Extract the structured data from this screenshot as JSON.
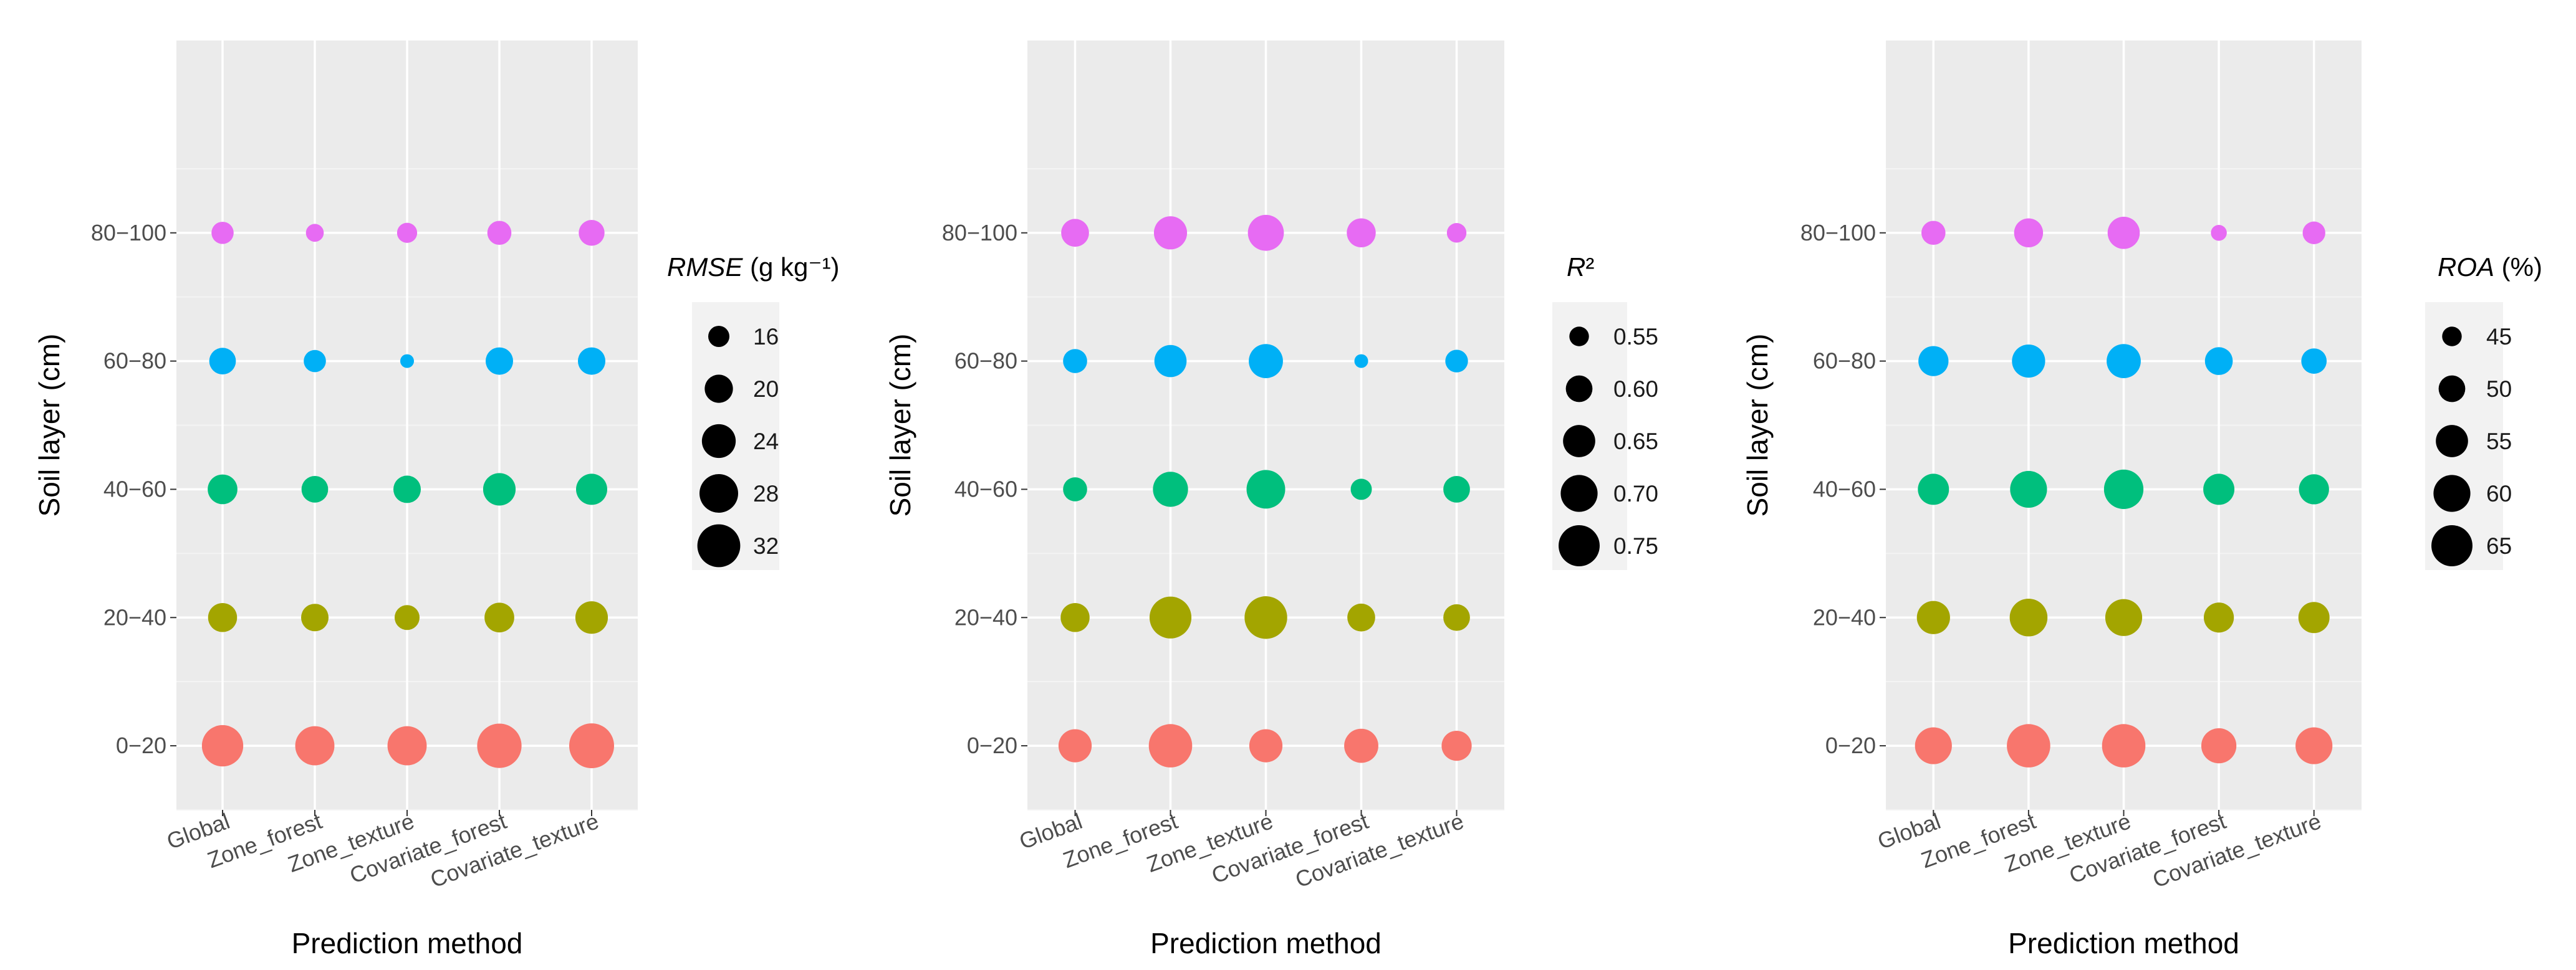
{
  "figure": {
    "panels": [
      "RMSE",
      "R2",
      "ROA"
    ]
  },
  "chart_data": [
    {
      "type": "scatter",
      "title": "",
      "xlabel": "Prediction method",
      "ylabel": "Soil layer (cm)",
      "categories": [
        "Global",
        "Zone_forest",
        "Zone_texture",
        "Covariate_forest",
        "Covariate_texture"
      ],
      "layers": [
        "0−20",
        "20−40",
        "40−60",
        "60−80",
        "80−100"
      ],
      "layer_colors": [
        "#F8766D",
        "#A3A500",
        "#00BF7D",
        "#00B0F6",
        "#E76BF3"
      ],
      "size_variable": "RMSE (g kg⁻¹)",
      "legend": {
        "title_italic": "RMSE",
        "title_rest": " (g kg⁻¹)",
        "values": [
          "16",
          "20",
          "24",
          "28",
          "32"
        ],
        "placement": "right"
      },
      "size_range": [
        13,
        34
      ],
      "grid": true,
      "series": [
        {
          "layer": "0−20",
          "values": [
            30.5,
            28.5,
            28.5,
            33.5,
            35
          ]
        },
        {
          "layer": "20−40",
          "values": [
            20.5,
            19.5,
            18,
            21,
            23
          ]
        },
        {
          "layer": "40−60",
          "values": [
            21,
            19,
            19.5,
            23,
            22
          ]
        },
        {
          "layer": "60−80",
          "values": [
            19,
            16.5,
            13,
            19.5,
            19.5
          ]
        },
        {
          "layer": "80−100",
          "values": [
            16.5,
            14.5,
            15.5,
            17.5,
            18.5
          ]
        }
      ]
    },
    {
      "type": "scatter",
      "title": "",
      "xlabel": "Prediction method",
      "ylabel": "Soil layer (cm)",
      "categories": [
        "Global",
        "Zone_forest",
        "Zone_texture",
        "Covariate_forest",
        "Covariate_texture"
      ],
      "layers": [
        "0−20",
        "20−40",
        "40−60",
        "60−80",
        "80−100"
      ],
      "layer_colors": [
        "#F8766D",
        "#A3A500",
        "#00BF7D",
        "#00B0F6",
        "#E76BF3"
      ],
      "size_variable": "R²",
      "legend": {
        "title_italic": "R",
        "title_rest": "²",
        "values": [
          "0.55",
          "0.60",
          "0.65",
          "0.70",
          "0.75"
        ],
        "placement": "right"
      },
      "size_range": [
        0.52,
        0.8
      ],
      "grid": true,
      "series": [
        {
          "layer": "0−20",
          "values": [
            0.66,
            0.78,
            0.66,
            0.67,
            0.63
          ]
        },
        {
          "layer": "20−40",
          "values": [
            0.62,
            0.76,
            0.77,
            0.61,
            0.6
          ]
        },
        {
          "layer": "40−60",
          "values": [
            0.58,
            0.68,
            0.72,
            0.56,
            0.6
          ]
        },
        {
          "layer": "60−80",
          "values": [
            0.58,
            0.65,
            0.67,
            0.52,
            0.57
          ]
        },
        {
          "layer": "80−100",
          "values": [
            0.61,
            0.66,
            0.69,
            0.62,
            0.55
          ]
        }
      ]
    },
    {
      "type": "scatter",
      "title": "",
      "xlabel": "Prediction method",
      "ylabel": "Soil layer (cm)",
      "categories": [
        "Global",
        "Zone_forest",
        "Zone_texture",
        "Covariate_forest",
        "Covariate_texture"
      ],
      "layers": [
        "0−20",
        "20−40",
        "40−60",
        "60−80",
        "80−100"
      ],
      "layer_colors": [
        "#F8766D",
        "#A3A500",
        "#00BF7D",
        "#00B0F6",
        "#E76BF3"
      ],
      "size_variable": "ROA (%)",
      "legend": {
        "title_italic": "ROA",
        "title_rest": " (%)",
        "values": [
          "45",
          "50",
          "55",
          "60",
          "65"
        ],
        "placement": "right"
      },
      "size_range": [
        42,
        70
      ],
      "grid": true,
      "series": [
        {
          "layer": "0−20",
          "values": [
            60,
            68,
            68,
            58,
            60
          ]
        },
        {
          "layer": "20−40",
          "values": [
            56,
            61,
            60,
            53,
            54
          ]
        },
        {
          "layer": "40−60",
          "values": [
            54,
            60,
            63,
            54,
            53
          ]
        },
        {
          "layer": "60−80",
          "values": [
            53,
            56,
            57,
            51,
            49
          ]
        },
        {
          "layer": "80−100",
          "values": [
            48,
            52,
            55,
            43,
            47
          ]
        }
      ]
    }
  ]
}
